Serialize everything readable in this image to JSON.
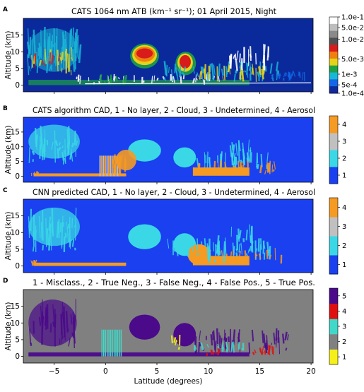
{
  "figure": {
    "x_axis_label": "Latitude (degrees)",
    "y_axis_label": "Altitude (km)"
  },
  "chart_data": [
    {
      "type": "heatmap",
      "panel_label": "A",
      "title": "CATS 1064 nm ATB (km⁻¹ sr⁻¹); 01 April 2015, Night",
      "ylabel": "Altitude (km)",
      "xlabel": "",
      "xlim": [
        -8,
        20.2
      ],
      "ylim": [
        -2,
        20
      ],
      "yticks": [
        0,
        5,
        10,
        15
      ],
      "colorbar": {
        "scale": "log",
        "ticks": [
          "1.0e-1",
          "5.0e-2",
          "1.0e-2",
          "5.0e-3",
          "1e-3",
          "5e-4",
          "1.0e-4"
        ],
        "colors": [
          "#ffffff",
          "#bdbdbd",
          "#8a8a8a",
          "#505050",
          "#d81b1b",
          "#f07f10",
          "#e6d21a",
          "#1ea047",
          "#19b6d6",
          "#1268e8",
          "#102a9a"
        ]
      },
      "background_color": "#0a2a9c",
      "features": [
        {
          "name": "thin cirrus",
          "lat": [
            -7.5,
            -2.5
          ],
          "alt": [
            4,
            17
          ],
          "color": "#19b6d6"
        },
        {
          "name": "deep cloud",
          "lat": [
            2.5,
            5
          ],
          "alt": [
            6,
            12
          ],
          "color": "#d81b1b"
        },
        {
          "name": "deep cloud",
          "lat": [
            7,
            8.5
          ],
          "alt": [
            3,
            10
          ],
          "color": "#e6d21a"
        },
        {
          "name": "aerosol layer",
          "lat": [
            -7,
            14
          ],
          "alt": [
            0,
            2
          ],
          "color": "#1ea047"
        }
      ]
    },
    {
      "type": "heatmap",
      "panel_label": "B",
      "title": "CATS algorithm CAD, 1 - No layer, 2 - Cloud, 3 - Undetermined, 4 - Aerosol",
      "ylabel": "Altitude (km)",
      "xlabel": "",
      "xlim": [
        -8,
        20.2
      ],
      "ylim": [
        -2,
        20
      ],
      "yticks": [
        0,
        5,
        10,
        15
      ],
      "colorbar": {
        "ticks": [
          "1",
          "2",
          "3",
          "4"
        ],
        "colors": [
          "#1a40f0",
          "#3ad8e6",
          "#c0c0c0",
          "#f59a22"
        ]
      }
    },
    {
      "type": "heatmap",
      "panel_label": "C",
      "title": "CNN predicted CAD, 1 - No layer, 2 - Cloud, 3 - Undetermined, 4 - Aerosol",
      "ylabel": "Altitude (km)",
      "xlabel": "",
      "xlim": [
        -8,
        20.2
      ],
      "ylim": [
        -2,
        20
      ],
      "yticks": [
        0,
        5,
        10,
        15
      ],
      "colorbar": {
        "ticks": [
          "1",
          "2",
          "3",
          "4"
        ],
        "colors": [
          "#1a40f0",
          "#3ad8e6",
          "#c0c0c0",
          "#f59a22"
        ]
      }
    },
    {
      "type": "heatmap",
      "panel_label": "D",
      "title": "1 - Misclass., 2 - True Neg., 3 - False Neg., 4 - False Pos., 5 - True Pos.",
      "ylabel": "Altitude (km)",
      "xlabel": "Latitude (degrees)",
      "xlim": [
        -8,
        20.2
      ],
      "ylim": [
        -2,
        20
      ],
      "xticks": [
        -5,
        0,
        5,
        10,
        15,
        20
      ],
      "yticks": [
        0,
        5,
        10,
        15
      ],
      "colorbar": {
        "ticks": [
          "1",
          "2",
          "3",
          "4",
          "5"
        ],
        "colors": [
          "#f6f01a",
          "#808080",
          "#40d8c8",
          "#e01010",
          "#4a0a8a"
        ]
      }
    }
  ]
}
